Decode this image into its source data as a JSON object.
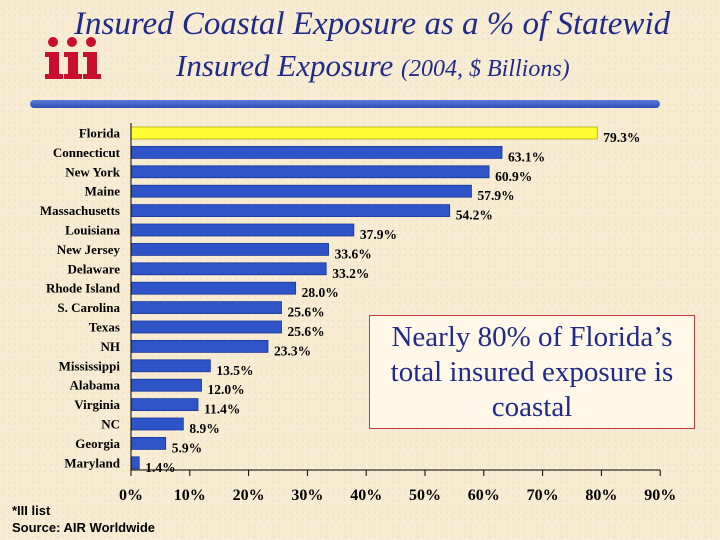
{
  "title": {
    "line1": "Insured Coastal Exposure as a % of Statewid",
    "line2_main": "Insured Exposure ",
    "line2_paren": "(2004, $ Billions)"
  },
  "logo": {
    "text": "iii"
  },
  "callout": {
    "text": "Nearly 80% of Florida’s total insured exposure is coastal"
  },
  "footnote": {
    "line1": "*III list",
    "line2": "Source: AIR Worldwide"
  },
  "colors": {
    "bar": "#2f54c8",
    "highlight": "#ffff33",
    "title": "#1f2a8a",
    "logo": "#c8102e"
  },
  "chart_data": {
    "type": "bar",
    "orientation": "horizontal",
    "categories": [
      "Florida",
      "Connecticut",
      "New York",
      "Maine",
      "Massachusetts",
      "Louisiana",
      "New Jersey",
      "Delaware",
      "Rhode Island",
      "S. Carolina",
      "Texas",
      "NH",
      "Mississippi",
      "Alabama",
      "Virginia",
      "NC",
      "Georgia",
      "Maryland"
    ],
    "values": [
      79.3,
      63.1,
      60.9,
      57.9,
      54.2,
      37.9,
      33.6,
      33.2,
      28.0,
      25.6,
      25.6,
      23.3,
      13.5,
      12.0,
      11.4,
      8.9,
      5.9,
      1.4
    ],
    "value_labels": [
      "79.3%",
      "63.1%",
      "60.9%",
      "57.9%",
      "54.2%",
      "37.9%",
      "33.6%",
      "33.2%",
      "28.0%",
      "25.6%",
      "25.6%",
      "23.3%",
      "13.5%",
      "12.0%",
      "11.4%",
      "8.9%",
      "5.9%",
      "1.4%"
    ],
    "highlight_category": "Florida",
    "xlim": [
      0,
      90
    ],
    "xticks": [
      0,
      10,
      20,
      30,
      40,
      50,
      60,
      70,
      80,
      90
    ],
    "xtick_labels": [
      "0%",
      "10%",
      "20%",
      "30%",
      "40%",
      "50%",
      "60%",
      "70%",
      "80%",
      "90%"
    ],
    "grid": false
  }
}
